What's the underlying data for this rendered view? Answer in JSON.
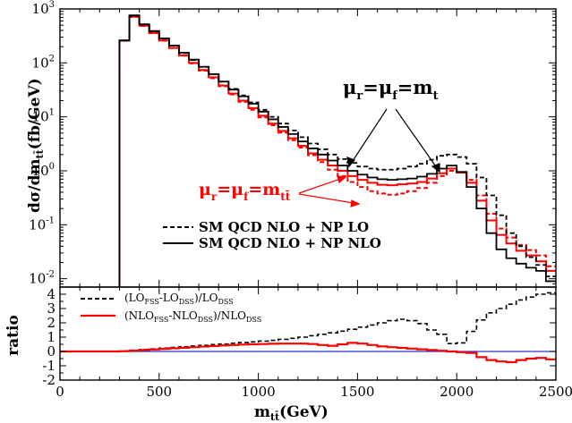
{
  "chart_data": [
    {
      "type": "line",
      "panel": "main",
      "ylabel_main": "dσ/dm",
      "ylabel_sub": "tt̄",
      "ylabel_unit": "(fb/GeV)",
      "yscale": "log",
      "ylim": [
        0.007,
        1000
      ],
      "xlim": [
        0,
        2500
      ],
      "grid": false,
      "legend_position": "center",
      "annotations": {
        "mu_t": {
          "mu": "μ",
          "r": "r",
          "eq1": "=μ",
          "f": "f",
          "eq2": "=m",
          "t": "t"
        },
        "mu_tt": {
          "mu": "μ",
          "r": "r",
          "eq1": "=μ",
          "f": "f",
          "eq2": "=m",
          "tt": "tt̄"
        }
      },
      "legend": [
        {
          "label": "SM QCD NLO + NP LO",
          "style": "dashed"
        },
        {
          "label": "SM QCD NLO + NP NLO",
          "style": "solid"
        }
      ],
      "x_edges": [
        300,
        350,
        400,
        450,
        500,
        550,
        600,
        650,
        700,
        750,
        800,
        850,
        900,
        950,
        1000,
        1050,
        1100,
        1150,
        1200,
        1250,
        1300,
        1350,
        1400,
        1450,
        1500,
        1550,
        1600,
        1650,
        1700,
        1750,
        1800,
        1850,
        1900,
        1950,
        2000,
        2050,
        2100,
        2150,
        2200,
        2250,
        2300,
        2350,
        2400,
        2450,
        2500
      ],
      "series": [
        {
          "key": "black_solid",
          "color": "#000000",
          "dash": "solid",
          "scale_label": "μr=μf=mt",
          "values": [
            260,
            760,
            520,
            390,
            285,
            210,
            155,
            115,
            85,
            62,
            45,
            32,
            24,
            17.5,
            12.5,
            9,
            6.5,
            4.8,
            3.5,
            2.6,
            2,
            1.55,
            1.25,
            1,
            0.85,
            0.75,
            0.7,
            0.68,
            0.7,
            0.72,
            0.78,
            0.88,
            1.1,
            1.25,
            0.95,
            0.5,
            0.2,
            0.07,
            0.035,
            0.024,
            0.019,
            0.016,
            0.014,
            0.009
          ]
        },
        {
          "key": "black_dashed",
          "color": "#000000",
          "dash": "dashed",
          "scale_label": "μr=μf=mt",
          "values": [
            260,
            740,
            510,
            385,
            280,
            208,
            152,
            113,
            84,
            62,
            45,
            33,
            25,
            18.5,
            13.5,
            10,
            7.5,
            5.6,
            4.2,
            3.2,
            2.5,
            2,
            1.65,
            1.4,
            1.2,
            1.1,
            1.05,
            1.05,
            1.1,
            1.2,
            1.35,
            1.6,
            1.9,
            2,
            1.8,
            1.35,
            0.75,
            0.35,
            0.15,
            0.07,
            0.04,
            0.025,
            0.018,
            0.011
          ]
        },
        {
          "key": "red_solid",
          "color": "#ff0000",
          "dash": "solid",
          "scale_label": "μr=μf=mtt̄",
          "values": [
            260,
            720,
            490,
            360,
            260,
            190,
            138,
            100,
            74,
            54,
            38,
            27,
            20,
            14.5,
            10.5,
            7.5,
            5.5,
            4,
            2.9,
            2.1,
            1.6,
            1.25,
            1,
            0.8,
            0.68,
            0.6,
            0.55,
            0.54,
            0.56,
            0.58,
            0.62,
            0.72,
            0.9,
            1.1,
            0.92,
            0.6,
            0.28,
            0.12,
            0.065,
            0.045,
            0.033,
            0.027,
            0.021,
            0.014
          ]
        },
        {
          "key": "red_dashed",
          "color": "#ff0000",
          "dash": "dashed",
          "scale_label": "μr=μf=mtt̄",
          "values": [
            260,
            710,
            485,
            355,
            258,
            188,
            136,
            98,
            72,
            52,
            37,
            26,
            19,
            13.5,
            9.8,
            7,
            5.1,
            3.7,
            2.7,
            1.95,
            1.45,
            1.05,
            0.8,
            0.62,
            0.5,
            0.42,
            0.38,
            0.36,
            0.38,
            0.42,
            0.48,
            0.6,
            0.8,
            1,
            0.95,
            0.68,
            0.35,
            0.16,
            0.085,
            0.058,
            0.042,
            0.034,
            0.027,
            0.017
          ]
        }
      ]
    },
    {
      "type": "line",
      "panel": "ratio",
      "xlabel_main": "m",
      "xlabel_sub": "tt̄",
      "xlabel_unit": "(GeV)",
      "ylabel": "ratio",
      "ylim": [
        -2,
        4.5
      ],
      "xlim": [
        0,
        2500
      ],
      "xticks": [
        0,
        500,
        1000,
        1500,
        2000,
        2500
      ],
      "yticks": [
        -2,
        -1,
        0,
        1,
        2,
        3,
        4
      ],
      "legend": [
        {
          "parts": [
            "(LO",
            "FSS",
            "-LO",
            "DSS",
            ")/LO",
            "DSS"
          ],
          "style": "dashed"
        },
        {
          "parts": [
            "(NLO",
            "FSS",
            "-NLO",
            "DSS",
            ")/NLO",
            "DSS"
          ],
          "style": "solid"
        }
      ],
      "reference_line": {
        "y": 0,
        "color": "#3333cc"
      },
      "x_edges": [
        0,
        50,
        100,
        150,
        200,
        250,
        300,
        350,
        400,
        450,
        500,
        550,
        600,
        650,
        700,
        750,
        800,
        850,
        900,
        950,
        1000,
        1050,
        1100,
        1150,
        1200,
        1250,
        1300,
        1350,
        1400,
        1450,
        1500,
        1550,
        1600,
        1650,
        1700,
        1750,
        1800,
        1850,
        1900,
        1950,
        2000,
        2050,
        2100,
        2150,
        2200,
        2250,
        2300,
        2350,
        2400,
        2450,
        2500
      ],
      "series": [
        {
          "key": "lo_ratio",
          "color": "#000000",
          "dash": "dashed",
          "values": [
            0,
            0,
            0,
            0,
            0,
            0,
            0.03,
            0.08,
            0.13,
            0.18,
            0.23,
            0.28,
            0.33,
            0.38,
            0.43,
            0.48,
            0.52,
            0.57,
            0.62,
            0.67,
            0.72,
            0.78,
            0.85,
            0.92,
            1,
            1.1,
            1.2,
            1.3,
            1.42,
            1.55,
            1.7,
            1.85,
            2,
            2.15,
            2.25,
            2.15,
            1.95,
            1.5,
            1.2,
            0.55,
            0.6,
            1.4,
            2.2,
            2.7,
            3,
            3.3,
            3.6,
            3.8,
            4,
            4.1
          ]
        },
        {
          "key": "nlo_ratio",
          "color": "#ff0000",
          "dash": "solid",
          "values": [
            0,
            0,
            0,
            0,
            0,
            0,
            0.02,
            0.06,
            0.1,
            0.14,
            0.18,
            0.22,
            0.26,
            0.3,
            0.34,
            0.38,
            0.42,
            0.45,
            0.48,
            0.5,
            0.52,
            0.54,
            0.55,
            0.55,
            0.55,
            0.52,
            0.45,
            0.4,
            0.5,
            0.6,
            0.55,
            0.45,
            0.35,
            0.3,
            0.25,
            0.2,
            0.15,
            0.1,
            0.05,
            0,
            -0.05,
            -0.1,
            -0.4,
            -0.6,
            -0.7,
            -0.75,
            -0.6,
            -0.5,
            -0.45,
            -0.55
          ]
        }
      ]
    }
  ],
  "colors": {
    "blue_line": "#3333cc",
    "red": "#ff0000",
    "black": "#000000"
  }
}
